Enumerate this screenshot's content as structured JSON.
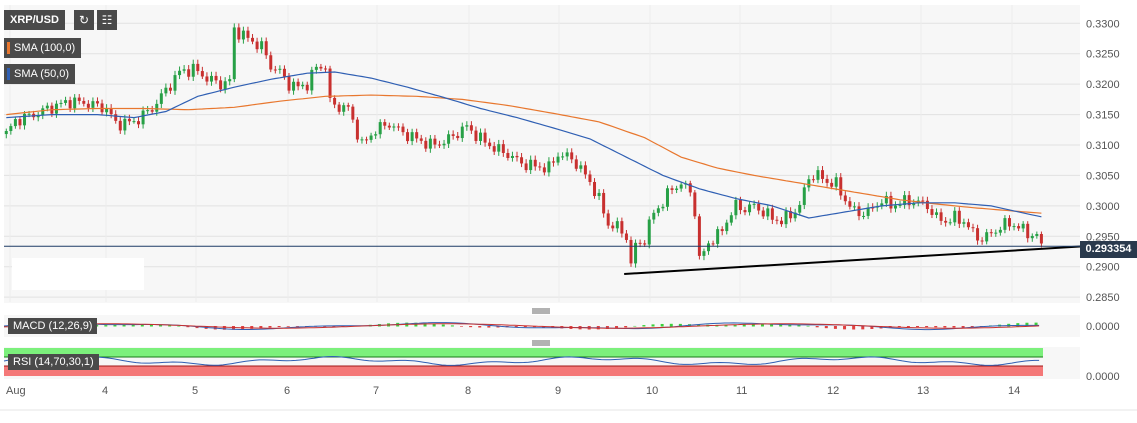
{
  "header": {
    "symbol": "XRP/USD",
    "refresh_icon": "refresh-icon",
    "indicators_icon": "indicators-icon"
  },
  "legend": {
    "sma100_label": "SMA (100,0)",
    "sma50_label": "SMA (50,0)"
  },
  "colors": {
    "bull": "#27a046",
    "bear": "#c8302f",
    "sma100": "#e8772e",
    "sma50": "#2f5fb3",
    "trendline": "#000000",
    "price_line": "#1f3c66",
    "rsi_green": "#7cf07c",
    "rsi_red": "#f47878",
    "macd_line": "#2f5fb3",
    "signal_line": "#c8302f"
  },
  "price_axis": {
    "ticks": [
      "0.3300",
      "0.3250",
      "0.3200",
      "0.3150",
      "0.3100",
      "0.3050",
      "0.3000",
      "0.2950",
      "0.2900",
      "0.2850"
    ],
    "current_price": "0.293354"
  },
  "macd": {
    "label": "MACD (12,26,9)",
    "tick": "0.0000"
  },
  "rsi": {
    "label": "RSI (14,70,30,1)",
    "tick": "0.0000"
  },
  "x_axis": {
    "labels": [
      "Aug",
      "4",
      "5",
      "6",
      "7",
      "8",
      "9",
      "10",
      "11",
      "12",
      "13",
      "14"
    ]
  },
  "chart_data": {
    "type": "candlestick",
    "ylim": [
      0.2842,
      0.3312
    ],
    "x_labels": [
      "Aug",
      "4",
      "5",
      "6",
      "7",
      "8",
      "9",
      "10",
      "11",
      "12",
      "13",
      "14"
    ],
    "close_anchors": [
      [
        0,
        0.3118
      ],
      [
        2,
        0.314
      ],
      [
        6,
        0.315
      ],
      [
        10,
        0.3162
      ],
      [
        14,
        0.3172
      ],
      [
        18,
        0.3168
      ],
      [
        22,
        0.316
      ],
      [
        24,
        0.3135
      ],
      [
        28,
        0.3138
      ],
      [
        32,
        0.316
      ],
      [
        35,
        0.319
      ],
      [
        38,
        0.322
      ],
      [
        41,
        0.3225
      ],
      [
        44,
        0.321
      ],
      [
        47,
        0.32
      ],
      [
        49,
        0.3205
      ],
      [
        50,
        0.329
      ],
      [
        52,
        0.328
      ],
      [
        54,
        0.327
      ],
      [
        56,
        0.3262
      ],
      [
        58,
        0.323
      ],
      [
        60,
        0.322
      ],
      [
        62,
        0.32
      ],
      [
        64,
        0.3195
      ],
      [
        66,
        0.32
      ],
      [
        68,
        0.3228
      ],
      [
        70,
        0.323
      ],
      [
        71,
        0.317
      ],
      [
        72,
        0.3165
      ],
      [
        75,
        0.316
      ],
      [
        78,
        0.31
      ],
      [
        81,
        0.3125
      ],
      [
        84,
        0.3135
      ],
      [
        87,
        0.312
      ],
      [
        90,
        0.311
      ],
      [
        93,
        0.31
      ],
      [
        96,
        0.3105
      ],
      [
        99,
        0.312
      ],
      [
        101,
        0.313
      ],
      [
        104,
        0.311
      ],
      [
        107,
        0.3095
      ],
      [
        110,
        0.3085
      ],
      [
        113,
        0.307
      ],
      [
        116,
        0.3065
      ],
      [
        119,
        0.3062
      ],
      [
        121,
        0.3085
      ],
      [
        124,
        0.3078
      ],
      [
        126,
        0.306
      ],
      [
        128,
        0.304
      ],
      [
        130,
        0.301
      ],
      [
        132,
        0.297
      ],
      [
        134,
        0.2965
      ],
      [
        136,
        0.295
      ],
      [
        137,
        0.2902
      ],
      [
        138,
        0.2935
      ],
      [
        140,
        0.2945
      ],
      [
        142,
        0.299
      ],
      [
        144,
        0.3005
      ],
      [
        146,
        0.303
      ],
      [
        148,
        0.3035
      ],
      [
        150,
        0.3025
      ],
      [
        151,
        0.299
      ],
      [
        152,
        0.291
      ],
      [
        154,
        0.294
      ],
      [
        156,
        0.295
      ],
      [
        158,
        0.2975
      ],
      [
        160,
        0.3
      ],
      [
        162,
        0.2995
      ],
      [
        164,
        0.3
      ],
      [
        166,
        0.299
      ],
      [
        168,
        0.298
      ],
      [
        170,
        0.2975
      ],
      [
        172,
        0.2985
      ],
      [
        174,
        0.3
      ],
      [
        176,
        0.3048
      ],
      [
        178,
        0.305
      ],
      [
        180,
        0.304
      ],
      [
        182,
        0.3035
      ],
      [
        184,
        0.301
      ],
      [
        186,
        0.299
      ],
      [
        188,
        0.2988
      ],
      [
        190,
        0.2995
      ],
      [
        192,
        0.301
      ],
      [
        194,
        0.3
      ],
      [
        196,
        0.3005
      ],
      [
        198,
        0.3008
      ],
      [
        200,
        0.3006
      ],
      [
        202,
        0.3
      ],
      [
        204,
        0.298
      ],
      [
        206,
        0.2975
      ],
      [
        208,
        0.298
      ],
      [
        210,
        0.2975
      ],
      [
        212,
        0.2955
      ],
      [
        214,
        0.2945
      ],
      [
        216,
        0.2955
      ],
      [
        218,
        0.2965
      ],
      [
        220,
        0.2972
      ],
      [
        222,
        0.2965
      ],
      [
        224,
        0.2955
      ],
      [
        226,
        0.295
      ],
      [
        227,
        0.2934
      ]
    ],
    "sma50_anchors": [
      [
        0,
        0.3145
      ],
      [
        10,
        0.315
      ],
      [
        20,
        0.315
      ],
      [
        28,
        0.3145
      ],
      [
        35,
        0.3155
      ],
      [
        42,
        0.318
      ],
      [
        50,
        0.3195
      ],
      [
        58,
        0.3208
      ],
      [
        66,
        0.3218
      ],
      [
        72,
        0.322
      ],
      [
        80,
        0.321
      ],
      [
        88,
        0.3195
      ],
      [
        96,
        0.3178
      ],
      [
        104,
        0.316
      ],
      [
        112,
        0.3145
      ],
      [
        120,
        0.3128
      ],
      [
        128,
        0.311
      ],
      [
        136,
        0.308
      ],
      [
        144,
        0.305
      ],
      [
        152,
        0.3028
      ],
      [
        160,
        0.3012
      ],
      [
        168,
        0.3
      ],
      [
        176,
        0.298
      ],
      [
        184,
        0.299
      ],
      [
        192,
        0.3
      ],
      [
        200,
        0.3005
      ],
      [
        208,
        0.3005
      ],
      [
        216,
        0.3
      ],
      [
        222,
        0.299
      ],
      [
        227,
        0.2982
      ]
    ],
    "sma100_anchors": [
      [
        0,
        0.315
      ],
      [
        10,
        0.3158
      ],
      [
        20,
        0.316
      ],
      [
        30,
        0.316
      ],
      [
        40,
        0.3158
      ],
      [
        50,
        0.3162
      ],
      [
        60,
        0.3172
      ],
      [
        70,
        0.318
      ],
      [
        80,
        0.3182
      ],
      [
        90,
        0.318
      ],
      [
        100,
        0.3175
      ],
      [
        110,
        0.3165
      ],
      [
        120,
        0.3152
      ],
      [
        130,
        0.3138
      ],
      [
        140,
        0.3112
      ],
      [
        148,
        0.308
      ],
      [
        156,
        0.3062
      ],
      [
        164,
        0.305
      ],
      [
        172,
        0.304
      ],
      [
        180,
        0.303
      ],
      [
        188,
        0.302
      ],
      [
        196,
        0.301
      ],
      [
        204,
        0.3003
      ],
      [
        212,
        0.2997
      ],
      [
        220,
        0.2992
      ],
      [
        227,
        0.2988
      ]
    ],
    "trendline": [
      [
        136,
        0.2888
      ],
      [
        240,
        0.2935
      ]
    ]
  }
}
